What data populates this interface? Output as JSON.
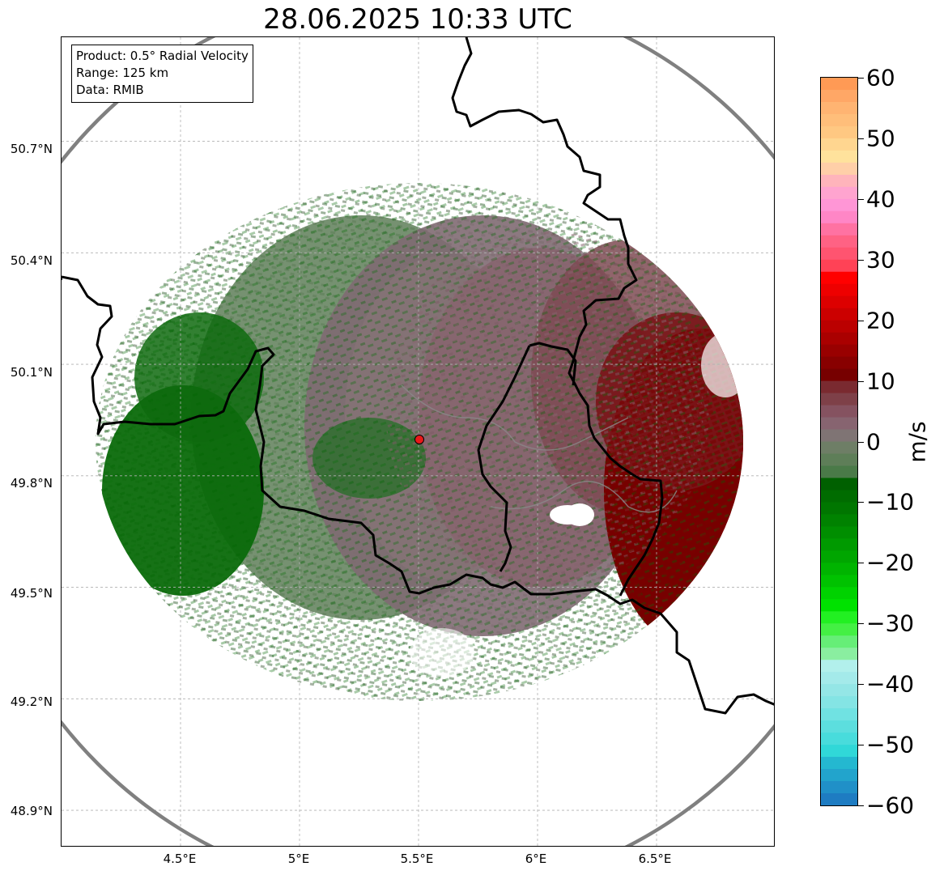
{
  "title": "28.06.2025 10:33 UTC",
  "info_box": {
    "product": "Product: 0.5° Radial Velocity",
    "range": "Range: 125 km",
    "data": "Data: RMIB"
  },
  "lat_labels": [
    "50.7°N",
    "50.4°N",
    "50.1°N",
    "49.8°N",
    "49.5°N",
    "49.2°N",
    "48.9°N"
  ],
  "lon_labels": [
    "4.5°E",
    "5°E",
    "5.5°E",
    "6°E",
    "6.5°E"
  ],
  "map": {
    "lat_ticks": [
      50.7,
      50.4,
      50.1,
      49.8,
      49.5,
      49.2,
      48.9
    ],
    "lon_ticks": [
      4.5,
      5.0,
      5.5,
      6.0,
      6.5
    ],
    "lon_range": [
      4.0,
      7.0
    ],
    "lat_range": [
      48.8,
      50.98
    ],
    "radar_site": {
      "lon": 5.505,
      "lat": 49.915,
      "color": "#e8191a"
    },
    "range_ring_km": 125,
    "range_ring_color": "#808080",
    "border_color": "#000000",
    "river_color": "#8a8a8a"
  },
  "colorbar": {
    "unit": "m/s",
    "min": -60,
    "max": 60,
    "tick_labels": [
      "60",
      "50",
      "40",
      "30",
      "20",
      "10",
      "0",
      "−10",
      "−20",
      "−30",
      "−40",
      "−50",
      "−60"
    ],
    "tick_values": [
      60,
      50,
      40,
      30,
      20,
      10,
      0,
      -10,
      -20,
      -30,
      -40,
      -50,
      -60
    ],
    "bands": [
      {
        "from": 58,
        "to": 60,
        "color": "#ff9a55"
      },
      {
        "from": 56,
        "to": 58,
        "color": "#ffa766"
      },
      {
        "from": 54,
        "to": 56,
        "color": "#ffb472"
      },
      {
        "from": 52,
        "to": 54,
        "color": "#ffbe7a"
      },
      {
        "from": 50,
        "to": 52,
        "color": "#ffc882"
      },
      {
        "from": 48,
        "to": 50,
        "color": "#ffd690"
      },
      {
        "from": 46,
        "to": 48,
        "color": "#ffe29c"
      },
      {
        "from": 44,
        "to": 46,
        "color": "#ffcfa8"
      },
      {
        "from": 42,
        "to": 44,
        "color": "#ffb4bb"
      },
      {
        "from": 40,
        "to": 42,
        "color": "#ffa4cf"
      },
      {
        "from": 38,
        "to": 40,
        "color": "#ff96d6"
      },
      {
        "from": 36,
        "to": 38,
        "color": "#ff86c6"
      },
      {
        "from": 34,
        "to": 36,
        "color": "#ff72a2"
      },
      {
        "from": 32,
        "to": 34,
        "color": "#ff6284"
      },
      {
        "from": 30,
        "to": 32,
        "color": "#ff5470"
      },
      {
        "from": 28,
        "to": 30,
        "color": "#ff4256"
      },
      {
        "from": 26,
        "to": 28,
        "color": "#ff0000"
      },
      {
        "from": 24,
        "to": 26,
        "color": "#ee0000"
      },
      {
        "from": 22,
        "to": 24,
        "color": "#dd0000"
      },
      {
        "from": 20,
        "to": 22,
        "color": "#cc0000"
      },
      {
        "from": 18,
        "to": 20,
        "color": "#bb0000"
      },
      {
        "from": 16,
        "to": 18,
        "color": "#aa0000"
      },
      {
        "from": 14,
        "to": 16,
        "color": "#990000"
      },
      {
        "from": 12,
        "to": 14,
        "color": "#880000"
      },
      {
        "from": 10,
        "to": 12,
        "color": "#770000"
      },
      {
        "from": 8,
        "to": 10,
        "color": "#7a2a30"
      },
      {
        "from": 6,
        "to": 8,
        "color": "#7e4048"
      },
      {
        "from": 4,
        "to": 6,
        "color": "#855260"
      },
      {
        "from": 2,
        "to": 4,
        "color": "#876470"
      },
      {
        "from": 0,
        "to": 2,
        "color": "#7f7474"
      },
      {
        "from": -2,
        "to": 0,
        "color": "#6e7e66"
      },
      {
        "from": -4,
        "to": -2,
        "color": "#5e7e58"
      },
      {
        "from": -6,
        "to": -4,
        "color": "#4a7a48"
      },
      {
        "from": -8,
        "to": -6,
        "color": "#006000"
      },
      {
        "from": -10,
        "to": -8,
        "color": "#006c00"
      },
      {
        "from": -12,
        "to": -10,
        "color": "#007600"
      },
      {
        "from": -14,
        "to": -12,
        "color": "#008200"
      },
      {
        "from": -16,
        "to": -14,
        "color": "#008e00"
      },
      {
        "from": -18,
        "to": -16,
        "color": "#009a00"
      },
      {
        "from": -20,
        "to": -18,
        "color": "#00a600"
      },
      {
        "from": -22,
        "to": -20,
        "color": "#00b400"
      },
      {
        "from": -24,
        "to": -22,
        "color": "#00c200"
      },
      {
        "from": -26,
        "to": -24,
        "color": "#00d200"
      },
      {
        "from": -28,
        "to": -26,
        "color": "#00e200"
      },
      {
        "from": -30,
        "to": -28,
        "color": "#22f022"
      },
      {
        "from": -32,
        "to": -30,
        "color": "#44f044"
      },
      {
        "from": -34,
        "to": -32,
        "color": "#66ee77"
      },
      {
        "from": -36,
        "to": -34,
        "color": "#8aeea0"
      },
      {
        "from": -38,
        "to": -36,
        "color": "#b2f0ec"
      },
      {
        "from": -40,
        "to": -38,
        "color": "#a4eaea"
      },
      {
        "from": -42,
        "to": -40,
        "color": "#94e6e6"
      },
      {
        "from": -44,
        "to": -42,
        "color": "#84e4e4"
      },
      {
        "from": -46,
        "to": -44,
        "color": "#70e2e2"
      },
      {
        "from": -48,
        "to": -46,
        "color": "#5cdede"
      },
      {
        "from": -50,
        "to": -48,
        "color": "#48dcdc"
      },
      {
        "from": -52,
        "to": -50,
        "color": "#30d8d8"
      },
      {
        "from": -54,
        "to": -52,
        "color": "#24b8d0"
      },
      {
        "from": -56,
        "to": -54,
        "color": "#22a4cc"
      },
      {
        "from": -58,
        "to": -56,
        "color": "#2090c8"
      },
      {
        "from": -60,
        "to": -58,
        "color": "#1e7cc2"
      }
    ]
  },
  "colors": {
    "inbound_green": "#006400",
    "inbound_green_light": "#5a7e58",
    "near_zero_mauve": "#87646e",
    "outbound_dark_red": "#770000"
  }
}
